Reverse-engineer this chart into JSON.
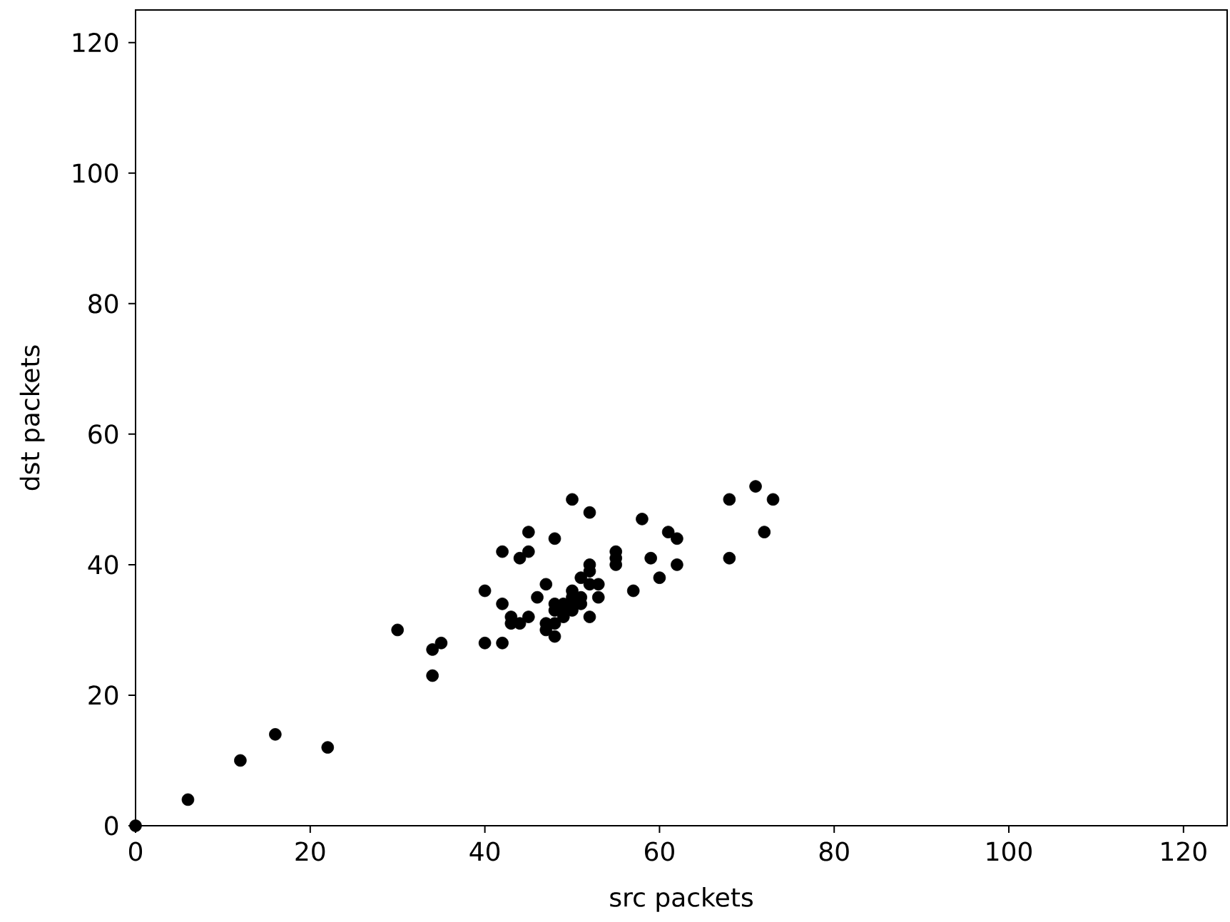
{
  "chart_data": {
    "type": "scatter",
    "xlabel": "src packets",
    "ylabel": "dst packets",
    "x": [
      0,
      6,
      12,
      16,
      22,
      30,
      34,
      34,
      35,
      40,
      40,
      42,
      42,
      42,
      43,
      43,
      44,
      44,
      45,
      45,
      45,
      46,
      47,
      47,
      47,
      48,
      48,
      48,
      48,
      48,
      49,
      49,
      49,
      50,
      50,
      50,
      50,
      50,
      51,
      51,
      51,
      52,
      52,
      52,
      52,
      52,
      53,
      53,
      55,
      55,
      55,
      57,
      58,
      59,
      60,
      61,
      62,
      62,
      68,
      68,
      71,
      72,
      73
    ],
    "values": [
      0,
      4,
      10,
      14,
      12,
      30,
      27,
      23,
      28,
      36,
      28,
      42,
      34,
      28,
      32,
      31,
      41,
      31,
      45,
      42,
      32,
      35,
      37,
      31,
      30,
      44,
      34,
      33,
      31,
      29,
      34,
      33,
      32,
      50,
      36,
      35,
      34,
      33,
      38,
      35,
      34,
      48,
      40,
      39,
      37,
      32,
      37,
      35,
      42,
      41,
      40,
      36,
      47,
      41,
      38,
      45,
      44,
      40,
      50,
      41,
      52,
      45,
      50
    ],
    "color": "#000000",
    "xlim": [
      0,
      125
    ],
    "ylim": [
      0,
      125
    ],
    "xticks": [
      0,
      20,
      40,
      60,
      80,
      100,
      120
    ],
    "yticks": [
      0,
      20,
      40,
      60,
      80,
      100,
      120
    ],
    "grid": false
  }
}
